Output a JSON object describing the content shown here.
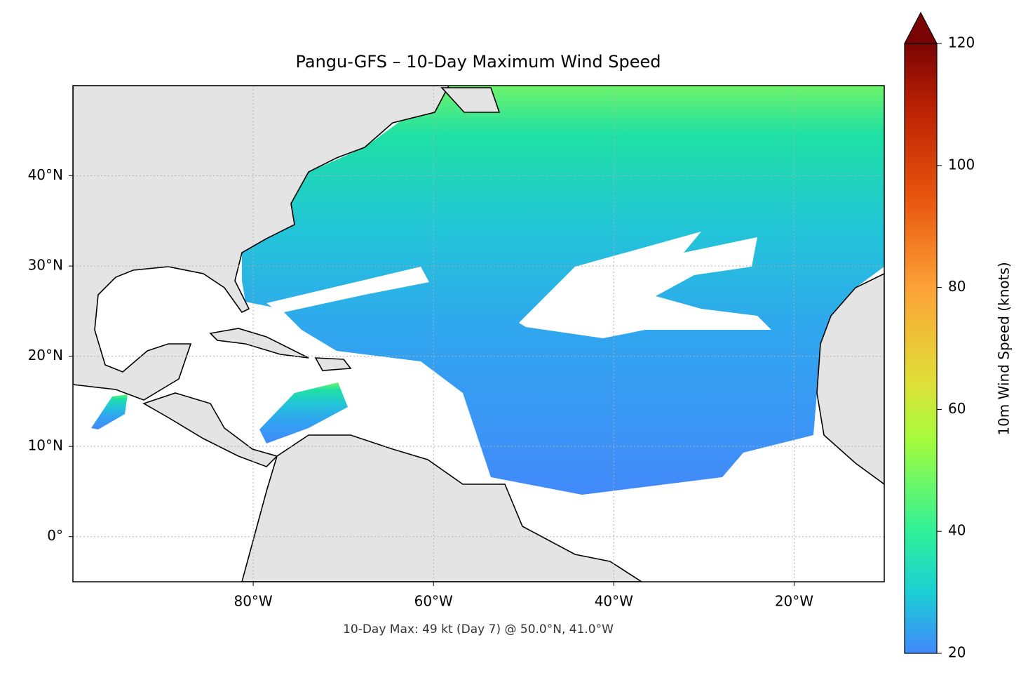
{
  "chart_data": {
    "type": "map",
    "title": "Pangu-GFS – 10-Day Maximum Wind Speed",
    "annotation": "10-Day Max: 49 kt (Day 7) @ 50.0°N, 41.0°W",
    "xlim": [
      -100,
      -10
    ],
    "ylim": [
      -5,
      50
    ],
    "xticks": [
      {
        "value": -80,
        "label": "80°W"
      },
      {
        "value": -60,
        "label": "60°W"
      },
      {
        "value": -40,
        "label": "40°W"
      },
      {
        "value": -20,
        "label": "20°W"
      }
    ],
    "yticks": [
      {
        "value": 0,
        "label": "0°"
      },
      {
        "value": 10,
        "label": "10°N"
      },
      {
        "value": 20,
        "label": "20°N"
      },
      {
        "value": 30,
        "label": "30°N"
      },
      {
        "value": 40,
        "label": "40°N"
      }
    ],
    "grid": true,
    "colorbar": {
      "label": "10m Wind Speed (knots)",
      "lim": [
        20,
        120
      ],
      "ticks": [
        20,
        40,
        60,
        80,
        100,
        120
      ]
    }
  }
}
